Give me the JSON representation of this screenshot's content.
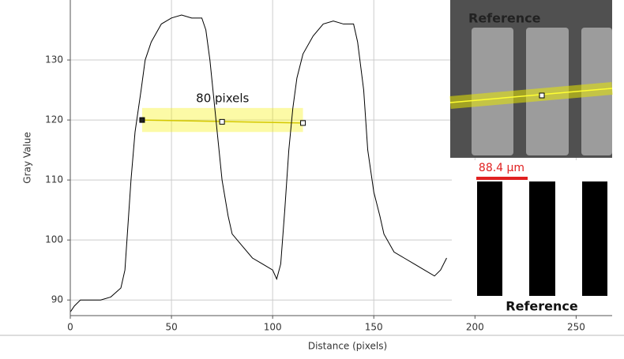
{
  "chart_data": {
    "type": "line",
    "xlabel": "Distance (pixels)",
    "ylabel": "Gray Value",
    "x": [
      0,
      2,
      5,
      10,
      15,
      20,
      25,
      27,
      28,
      30,
      32,
      35,
      37,
      40,
      45,
      50,
      55,
      60,
      65,
      67,
      69,
      72,
      75,
      78,
      80,
      85,
      90,
      95,
      100,
      102,
      104,
      106,
      108,
      110,
      112,
      115,
      120,
      125,
      130,
      135,
      140,
      142,
      145,
      147,
      150,
      153,
      155,
      160,
      165,
      170,
      175,
      180,
      183,
      186
    ],
    "values": [
      88,
      89,
      90,
      90,
      90,
      90.5,
      92,
      95,
      100,
      110,
      118,
      125,
      130,
      133,
      136,
      137,
      137.5,
      137,
      137,
      135,
      130,
      120,
      110,
      104,
      101,
      99,
      97,
      96,
      95,
      93.5,
      96,
      105,
      115,
      122,
      127,
      131,
      134,
      136,
      136.5,
      136,
      136,
      133,
      125,
      115,
      108,
      104,
      101,
      98,
      97,
      96,
      95,
      94,
      95,
      97
    ],
    "color": "#000000",
    "xlim": [
      0,
      267.8
    ],
    "ylim": [
      87.4,
      140
    ],
    "xticks": [
      0,
      50,
      100,
      150,
      200,
      250
    ],
    "yticks": [
      90,
      100,
      110,
      120,
      130
    ],
    "grid": true,
    "annotation": "80 pixels",
    "markers": {
      "x": [
        35.5,
        75,
        115
      ],
      "y": [
        120,
        119.7,
        119.5
      ]
    },
    "band_ylim": [
      118,
      122
    ],
    "inset_top_label": "Reference",
    "scale_label": "88.4 µm",
    "inset_bottom_label": "Reference"
  }
}
